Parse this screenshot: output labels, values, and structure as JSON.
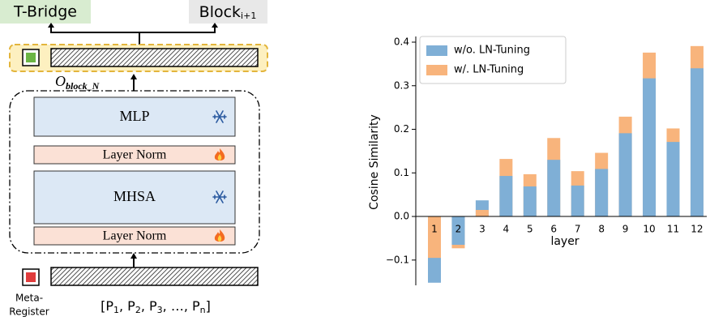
{
  "diagram": {
    "t_bridge": "T-Bridge",
    "block": {
      "base": "Block",
      "sub": "i+1"
    },
    "output": {
      "base": "O",
      "sub": "block_N"
    },
    "modules": [
      "MLP",
      "Layer Norm",
      "MHSA",
      "Layer Norm"
    ],
    "meta_register": [
      "Meta-",
      "Register"
    ],
    "prompts": [
      "[P",
      "1",
      ", P",
      "2",
      ", P",
      "3",
      ", …, P",
      "n",
      "]"
    ]
  },
  "chart_data": {
    "type": "bar",
    "x_label": "layer",
    "y_label": "Cosine Similarity",
    "categories": [
      "1",
      "2",
      "3",
      "4",
      "5",
      "6",
      "7",
      "8",
      "9",
      "10",
      "11",
      "12"
    ],
    "series": [
      {
        "name": "w/o. LN-Tuning",
        "color": "#7fafd6",
        "values": [
          -0.152,
          -0.065,
          0.037,
          0.093,
          0.069,
          0.13,
          0.071,
          0.109,
          0.191,
          0.317,
          0.171,
          0.34
        ]
      },
      {
        "name": "w/. LN-Tuning",
        "color": "#f8b47c",
        "values": [
          -0.095,
          -0.073,
          0.015,
          0.132,
          0.097,
          0.18,
          0.104,
          0.146,
          0.229,
          0.376,
          0.202,
          0.391
        ]
      }
    ],
    "ylim": [
      -0.158,
      0.413
    ],
    "yticks": [
      {
        "value": -0.1,
        "label": "−0.1"
      },
      {
        "value": 0,
        "label": "0.0"
      },
      {
        "value": 0.1,
        "label": "0.1"
      },
      {
        "value": 0.2,
        "label": "0.2"
      },
      {
        "value": 0.3,
        "label": "0.3"
      },
      {
        "value": 0.4,
        "label": "0.4"
      }
    ],
    "legend": "upper left",
    "overlay": true
  }
}
